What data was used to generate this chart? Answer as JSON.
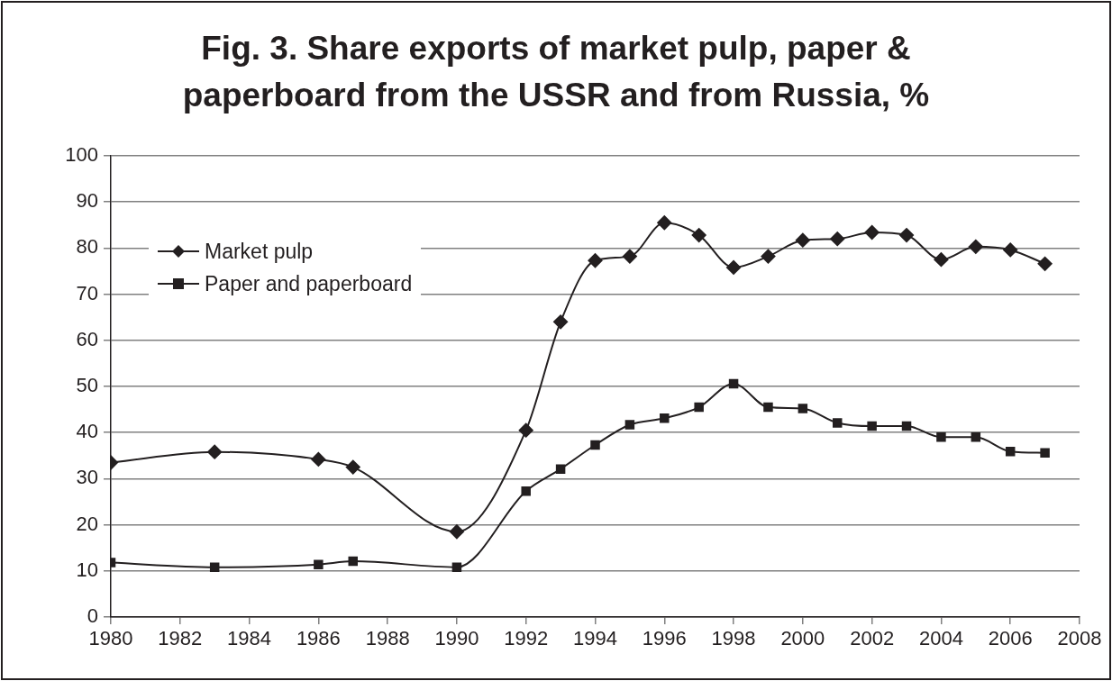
{
  "chart_data": {
    "type": "line",
    "title": "Fig. 3. Share exports of market pulp, paper & paperboard from the USSR and from Russia, %",
    "x": [
      1980,
      1983,
      1986,
      1987,
      1990,
      1992,
      1993,
      1994,
      1995,
      1996,
      1997,
      1998,
      1999,
      2000,
      2001,
      2002,
      2003,
      2004,
      2005,
      2006,
      2007
    ],
    "series": [
      {
        "name": "Market pulp",
        "color": "#231f20",
        "marker": "diamond",
        "values": [
          33.5,
          35.8,
          34.2,
          32.5,
          18.5,
          40.5,
          64,
          77.3,
          78.2,
          85.5,
          82.8,
          75.8,
          78.2,
          81.7,
          82,
          83.4,
          82.8,
          77.5,
          80.3,
          79.6,
          76.6
        ]
      },
      {
        "name": "Paper and paperboard",
        "color": "#231f20",
        "marker": "square",
        "values": [
          11.8,
          10.8,
          11.4,
          12.1,
          10.8,
          27.3,
          32.1,
          37.3,
          41.7,
          43.1,
          45.5,
          50.6,
          45.5,
          45.2,
          42.1,
          41.4,
          41.4,
          39,
          39,
          35.9,
          35.6
        ]
      }
    ],
    "xlim": [
      1980,
      2008
    ],
    "xticks": [
      1980,
      1982,
      1984,
      1986,
      1988,
      1990,
      1992,
      1994,
      1996,
      1998,
      2000,
      2002,
      2004,
      2006,
      2008
    ],
    "ylim": [
      0,
      100
    ],
    "yticks": [
      0,
      10,
      20,
      30,
      40,
      50,
      60,
      70,
      80,
      90,
      100
    ],
    "grid": "y",
    "legend": "top left",
    "line_style": "solid"
  }
}
